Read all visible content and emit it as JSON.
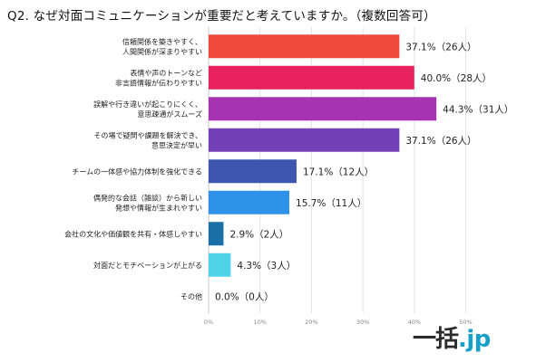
{
  "title": "Q2. なぜ対面コミュニケーションが重要だと考えていますか。（複数回答可）",
  "logo": {
    "main": "一括",
    "suffix": ".jp"
  },
  "chart_data": {
    "type": "bar",
    "orientation": "horizontal",
    "title": "Q2. なぜ対面コミュニケーションが重要だと考えていますか。（複数回答可）",
    "xlabel": "",
    "ylabel": "",
    "xlim": [
      0,
      50
    ],
    "x_ticks": [
      0,
      10,
      20,
      30,
      40,
      50
    ],
    "x_tick_labels": [
      "0%",
      "10%",
      "20%",
      "30%",
      "40%",
      "50%"
    ],
    "grid": true,
    "unit": "%",
    "categories": [
      [
        "信頼関係を築きやすく、",
        "人間関係が深まりやすい"
      ],
      [
        "表情や声のトーンなど",
        "非言語情報が伝わりやすい"
      ],
      [
        "誤解や行き違いが起こりにくく、",
        "意思疎通がスムーズ"
      ],
      [
        "その場で疑問や課題を解決でき、",
        "意思決定が早い"
      ],
      [
        "チームの一体感や協力体制を強化できる"
      ],
      [
        "偶発的な会話（雑談）から新しい",
        "発想や情報が生まれやすい"
      ],
      [
        "会社の文化や価値観を共有・体感しやすい"
      ],
      [
        "対面だとモチベーションが上がる"
      ],
      [
        "その他"
      ]
    ],
    "values": [
      37.1,
      40.0,
      44.3,
      37.1,
      17.1,
      15.7,
      2.9,
      4.3,
      0.0
    ],
    "counts": [
      26,
      28,
      31,
      26,
      12,
      11,
      2,
      3,
      0
    ],
    "value_labels": [
      "37.1%（26人）",
      "40.0%（28人）",
      "44.3%（31人）",
      "37.1%（26人）",
      "17.1%（12人）",
      "15.7%（11人）",
      "2.9%（2人）",
      "4.3%（3人）",
      "0.0%（0人）"
    ],
    "colors": [
      "#f04a3c",
      "#e8225c",
      "#a733b3",
      "#7340b5",
      "#3f56b0",
      "#2e93e8",
      "#1a6fa6",
      "#4fd3e6",
      "#cfcfcf"
    ],
    "grid_color": "#e3e3e3",
    "axis_color": "#c8c8c8"
  }
}
